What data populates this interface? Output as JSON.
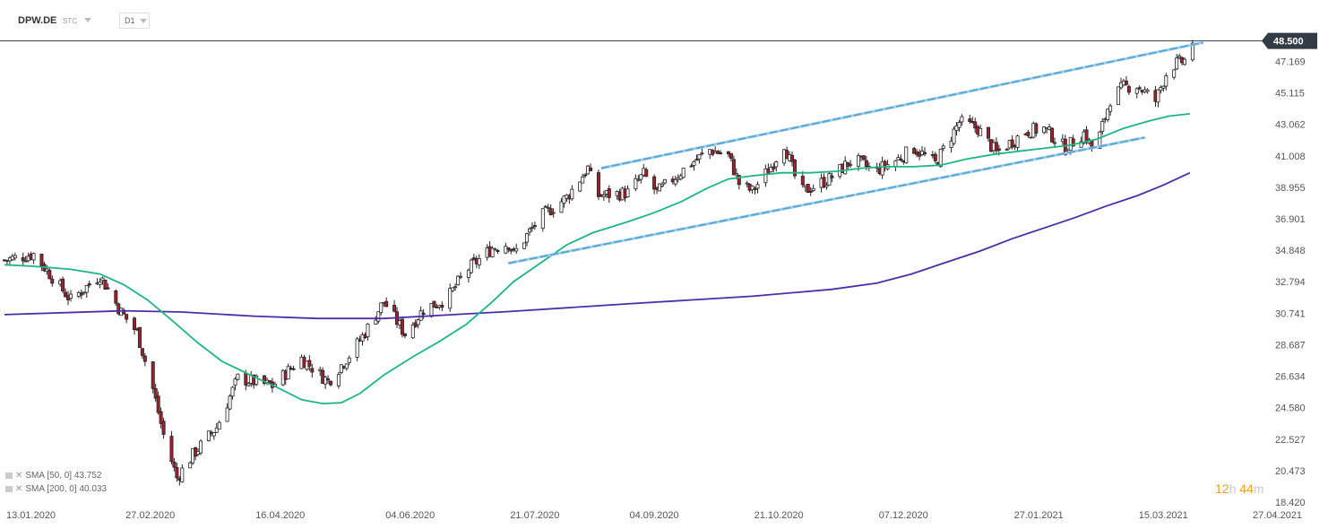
{
  "toolbar": {
    "symbol": "DPW.DE",
    "quote_type": "STC",
    "timeframe": "D1"
  },
  "chart_data": {
    "type": "candlestick",
    "instrument": "DPW.DE",
    "timeframe": "D1",
    "last_price": "48.500",
    "y_ticks": [
      "47.169",
      "45.115",
      "43.062",
      "41.008",
      "38.955",
      "36.901",
      "34.848",
      "32.794",
      "30.741",
      "28.687",
      "26.634",
      "24.580",
      "22.527",
      "20.473",
      "18.420"
    ],
    "ylim": [
      18.42,
      49.3
    ],
    "x_ticks": [
      "13.01.2020",
      "27.02.2020",
      "16.04.2020",
      "04.06.2020",
      "21.07.2020",
      "04.09.2020",
      "21.10.2020",
      "07.12.2020",
      "27.01.2021",
      "15.03.2021",
      "27.04.2021"
    ],
    "price_path": [
      [
        "13.01.2020",
        34.2
      ],
      [
        "24.01.2020",
        34.6
      ],
      [
        "07.02.2020",
        31.6
      ],
      [
        "18.02.2020",
        33.2
      ],
      [
        "26.02.2020",
        30.8
      ],
      [
        "03.03.2020",
        29.5
      ],
      [
        "09.03.2020",
        25.8
      ],
      [
        "13.03.2020",
        22.8
      ],
      [
        "18.03.2020",
        20.0
      ],
      [
        "24.03.2020",
        21.5
      ],
      [
        "02.04.2020",
        23.3
      ],
      [
        "10.04.2020",
        26.5
      ],
      [
        "23.04.2020",
        26.0
      ],
      [
        "04.05.2020",
        27.8
      ],
      [
        "14.05.2020",
        26.3
      ],
      [
        "23.05.2020",
        28.2
      ],
      [
        "28.05.2020",
        29.5
      ],
      [
        "04.06.2020",
        31.5
      ],
      [
        "12.06.2020",
        29.4
      ],
      [
        "19.06.2020",
        31.0
      ],
      [
        "28.06.2020",
        31.7
      ],
      [
        "05.07.2020",
        33.5
      ],
      [
        "15.07.2020",
        35.0
      ],
      [
        "21.07.2020",
        35.3
      ],
      [
        "23.07.2020",
        34.6
      ],
      [
        "02.08.2020",
        37.0
      ],
      [
        "12.08.2020",
        38.3
      ],
      [
        "20.08.2020",
        40.2
      ],
      [
        "23.08.2020",
        38.4
      ],
      [
        "04.09.2020",
        38.6
      ],
      [
        "10.09.2020",
        39.8
      ],
      [
        "15.09.2020",
        38.6
      ],
      [
        "27.09.2020",
        40.4
      ],
      [
        "05.10.2020",
        41.4
      ],
      [
        "12.10.2020",
        41.0
      ],
      [
        "16.10.2020",
        39.2
      ],
      [
        "21.10.2020",
        38.7
      ],
      [
        "28.10.2020",
        40.3
      ],
      [
        "02.11.2020",
        41.8
      ],
      [
        "08.11.2020",
        38.6
      ],
      [
        "19.11.2020",
        39.5
      ],
      [
        "28.11.2020",
        40.8
      ],
      [
        "06.12.2020",
        40.0
      ],
      [
        "14.12.2020",
        40.7
      ],
      [
        "21.12.2020",
        41.5
      ],
      [
        "29.12.2020",
        40.5
      ],
      [
        "07.01.2021",
        43.2
      ],
      [
        "14.01.2021",
        42.8
      ],
      [
        "21.01.2021",
        41.2
      ],
      [
        "01.02.2021",
        42.6
      ],
      [
        "08.02.2021",
        42.8
      ],
      [
        "16.02.2021",
        41.5
      ],
      [
        "23.02.2021",
        42.5
      ],
      [
        "27.02.2021",
        41.2
      ],
      [
        "05.03.2021",
        44.7
      ],
      [
        "10.03.2021",
        45.5
      ],
      [
        "15.03.2021",
        45.6
      ],
      [
        "22.03.2021",
        44.6
      ],
      [
        "27.03.2021",
        46.8
      ],
      [
        "03.04.2021",
        47.3
      ],
      [
        "05.04.2021",
        48.5
      ]
    ],
    "sma50_path": [
      [
        "13.01.2020",
        33.9
      ],
      [
        "24.01.2020",
        33.8
      ],
      [
        "07.02.2020",
        33.6
      ],
      [
        "18.02.2020",
        33.3
      ],
      [
        "27.02.2020",
        32.6
      ],
      [
        "07.03.2020",
        31.6
      ],
      [
        "16.03.2020",
        30.3
      ],
      [
        "26.03.2020",
        28.8
      ],
      [
        "04.04.2020",
        27.6
      ],
      [
        "16.04.2020",
        26.6
      ],
      [
        "26.04.2020",
        25.8
      ],
      [
        "04.05.2020",
        25.1
      ],
      [
        "12.05.2020",
        24.85
      ],
      [
        "19.05.2020",
        24.9
      ],
      [
        "26.05.2020",
        25.5
      ],
      [
        "04.06.2020",
        26.7
      ],
      [
        "15.06.2020",
        27.9
      ],
      [
        "25.06.2020",
        28.9
      ],
      [
        "05.07.2020",
        30.0
      ],
      [
        "15.07.2020",
        31.5
      ],
      [
        "23.07.2020",
        32.8
      ],
      [
        "02.08.2020",
        34.0
      ],
      [
        "12.08.2020",
        35.2
      ],
      [
        "22.08.2020",
        36.0
      ],
      [
        "04.09.2020",
        36.7
      ],
      [
        "14.09.2020",
        37.3
      ],
      [
        "24.09.2020",
        38.0
      ],
      [
        "04.10.2020",
        38.9
      ],
      [
        "12.10.2020",
        39.5
      ],
      [
        "21.10.2020",
        39.7
      ],
      [
        "01.11.2020",
        39.9
      ],
      [
        "12.11.2020",
        39.9
      ],
      [
        "22.11.2020",
        40.0
      ],
      [
        "01.12.2020",
        40.2
      ],
      [
        "11.12.2020",
        40.3
      ],
      [
        "21.12.2020",
        40.3
      ],
      [
        "31.12.2020",
        40.4
      ],
      [
        "10.01.2021",
        40.8
      ],
      [
        "20.01.2021",
        41.1
      ],
      [
        "29.01.2021",
        41.3
      ],
      [
        "08.02.2021",
        41.5
      ],
      [
        "18.02.2021",
        41.7
      ],
      [
        "28.02.2021",
        42.1
      ],
      [
        "10.03.2021",
        42.8
      ],
      [
        "20.03.2021",
        43.3
      ],
      [
        "27.03.2021",
        43.6
      ],
      [
        "04.04.2021",
        43.75
      ]
    ],
    "sma200_path": [
      [
        "13.01.2020",
        30.65
      ],
      [
        "27.02.2020",
        30.9
      ],
      [
        "20.03.2020",
        30.82
      ],
      [
        "16.04.2020",
        30.55
      ],
      [
        "10.05.2020",
        30.4
      ],
      [
        "04.06.2020",
        30.4
      ],
      [
        "21.07.2020",
        30.85
      ],
      [
        "04.09.2020",
        31.35
      ],
      [
        "21.10.2020",
        31.85
      ],
      [
        "20.11.2020",
        32.3
      ],
      [
        "07.12.2020",
        32.7
      ],
      [
        "20.12.2020",
        33.3
      ],
      [
        "01.01.2021",
        34.0
      ],
      [
        "15.01.2021",
        34.8
      ],
      [
        "27.01.2021",
        35.6
      ],
      [
        "08.02.2021",
        36.3
      ],
      [
        "20.02.2021",
        37.0
      ],
      [
        "03.03.2021",
        37.7
      ],
      [
        "15.03.2021",
        38.4
      ],
      [
        "25.03.2021",
        39.1
      ],
      [
        "04.04.2021",
        39.9
      ]
    ],
    "trendlines": [
      {
        "name": "upper-channel",
        "from": [
          "25.08.2020",
          40.2
        ],
        "to": [
          "09.04.2021",
          48.4
        ]
      },
      {
        "name": "lower-channel",
        "from": [
          "21.07.2020",
          34.0
        ],
        "to": [
          "18.03.2021",
          42.2
        ]
      }
    ],
    "indicators": [
      {
        "name": "SMA [50, 0]",
        "value": "43.752",
        "color": "#1db584"
      },
      {
        "name": "SMA [200, 0]",
        "value": "40.033",
        "color": "#4a2ea8"
      }
    ],
    "colors": {
      "bull": "#ffffff",
      "bear": "#a31f2c",
      "wick": "#222222",
      "channel": "#5aa9d6",
      "price_label": "#333b45"
    },
    "timer": {
      "hours": "12",
      "hours_unit": "h",
      "minutes": "44",
      "minutes_unit": "m"
    }
  }
}
